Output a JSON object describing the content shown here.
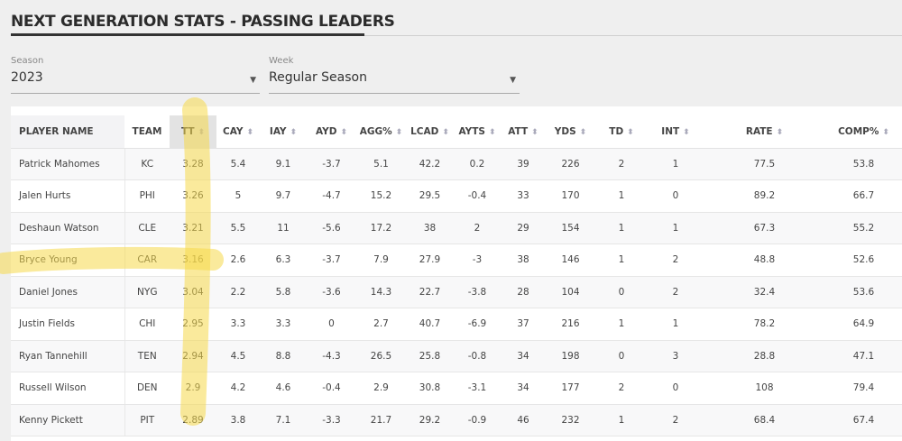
{
  "header": {
    "title": "NEXT GENERATION STATS - PASSING LEADERS"
  },
  "filters": {
    "season_label": "Season",
    "season_value": "2023",
    "week_label": "Week",
    "week_value": "Regular Season"
  },
  "table": {
    "columns": [
      "PLAYER NAME",
      "TEAM",
      "TT",
      "CAY",
      "IAY",
      "AYD",
      "AGG%",
      "LCAD",
      "AYTS",
      "ATT",
      "YDS",
      "TD",
      "INT",
      "RATE",
      "COMP%"
    ],
    "sort_icon": "sort-arrows-icon",
    "rows": [
      [
        "Patrick Mahomes",
        "KC",
        "3.28",
        "5.4",
        "9.1",
        "-3.7",
        "5.1",
        "42.2",
        "0.2",
        "39",
        "226",
        "2",
        "1",
        "77.5",
        "53.8"
      ],
      [
        "Jalen Hurts",
        "PHI",
        "3.26",
        "5",
        "9.7",
        "-4.7",
        "15.2",
        "29.5",
        "-0.4",
        "33",
        "170",
        "1",
        "0",
        "89.2",
        "66.7"
      ],
      [
        "Deshaun Watson",
        "CLE",
        "3.21",
        "5.5",
        "11",
        "-5.6",
        "17.2",
        "38",
        "2",
        "29",
        "154",
        "1",
        "1",
        "67.3",
        "55.2"
      ],
      [
        "Bryce Young",
        "CAR",
        "3.16",
        "2.6",
        "6.3",
        "-3.7",
        "7.9",
        "27.9",
        "-3",
        "38",
        "146",
        "1",
        "2",
        "48.8",
        "52.6"
      ],
      [
        "Daniel Jones",
        "NYG",
        "3.04",
        "2.2",
        "5.8",
        "-3.6",
        "14.3",
        "22.7",
        "-3.8",
        "28",
        "104",
        "0",
        "2",
        "32.4",
        "53.6"
      ],
      [
        "Justin Fields",
        "CHI",
        "2.95",
        "3.3",
        "3.3",
        "0",
        "2.7",
        "40.7",
        "-6.9",
        "37",
        "216",
        "1",
        "1",
        "78.2",
        "64.9"
      ],
      [
        "Ryan Tannehill",
        "TEN",
        "2.94",
        "4.5",
        "8.8",
        "-4.3",
        "26.5",
        "25.8",
        "-0.8",
        "34",
        "198",
        "0",
        "3",
        "28.8",
        "47.1"
      ],
      [
        "Russell Wilson",
        "DEN",
        "2.9",
        "4.2",
        "4.6",
        "-0.4",
        "2.9",
        "30.8",
        "-3.1",
        "34",
        "177",
        "2",
        "0",
        "108",
        "79.4"
      ],
      [
        "Kenny Pickett",
        "PIT",
        "2.89",
        "3.8",
        "7.1",
        "-3.3",
        "21.7",
        "29.2",
        "-0.9",
        "46",
        "232",
        "1",
        "2",
        "68.4",
        "67.4"
      ]
    ]
  },
  "colors": {
    "highlighter": "#f5d84a"
  }
}
